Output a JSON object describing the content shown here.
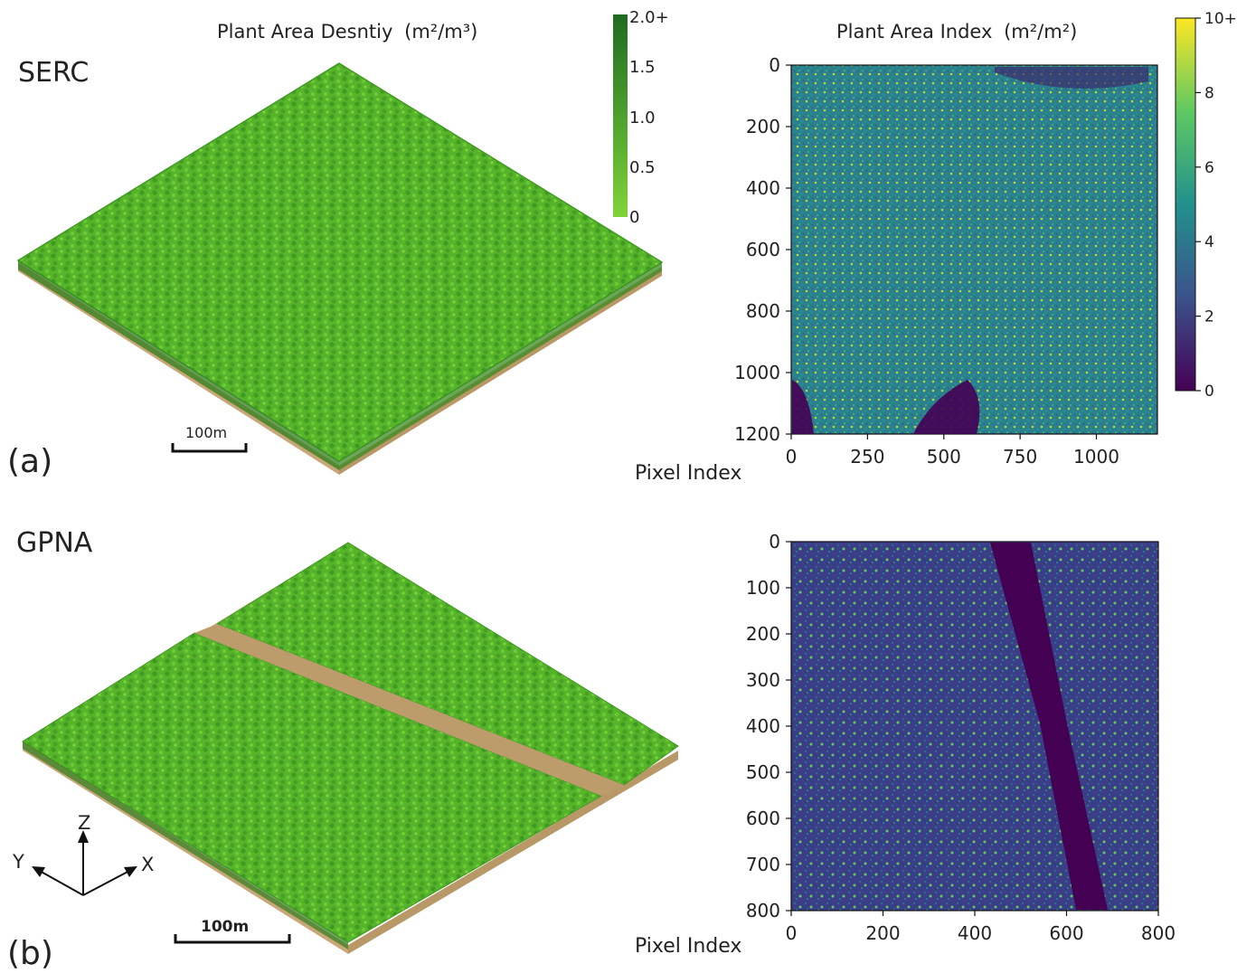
{
  "figure": {
    "panel_a": {
      "site": "SERC",
      "letter": "(a)",
      "pad_title": "Plant Area Desntiy",
      "pad_unit_html": "(m²/m³)",
      "scale_bar": "100m",
      "pad_colorbar": {
        "ticks": [
          "2.0+",
          "1.5",
          "1.0",
          "0.5",
          "0"
        ],
        "colors": [
          "#1e6b22",
          "#7fd43a"
        ]
      }
    },
    "panel_b": {
      "site": "GPNA",
      "letter": "(b)",
      "scale_bar": "100m",
      "axes": {
        "z": "Z",
        "x": "X",
        "y": "Y"
      }
    },
    "pai_title": "Plant Area Index",
    "pai_unit_html": "(m²/m²)",
    "pai_colorbar": {
      "ticks": [
        "10+",
        "8",
        "6",
        "4",
        "2",
        "0"
      ],
      "colors": [
        "#440154",
        "#3b528b",
        "#21918c",
        "#5ec962",
        "#fde725"
      ]
    },
    "xlabel": "Pixel Index"
  },
  "chart_data": [
    {
      "type": "heatmap",
      "name": "SERC PAI",
      "xlabel": "Pixel Index",
      "ylabel": "",
      "xlim": [
        0,
        1200
      ],
      "ylim": [
        1200,
        0
      ],
      "xticks": [
        0,
        250,
        500,
        750,
        1000
      ],
      "yticks": [
        0,
        200,
        400,
        600,
        800,
        1000,
        1200
      ],
      "colorbar_range": [
        0,
        10
      ],
      "colorbar_label": "Plant Area Index (m²/m²)"
    },
    {
      "type": "heatmap",
      "name": "GPNA PAI",
      "xlabel": "Pixel Index",
      "ylabel": "",
      "xlim": [
        0,
        800
      ],
      "ylim": [
        800,
        0
      ],
      "xticks": [
        0,
        200,
        400,
        600,
        800
      ],
      "yticks": [
        0,
        100,
        200,
        300,
        400,
        500,
        600,
        700,
        800
      ],
      "colorbar_range": [
        0,
        10
      ],
      "colorbar_label": "Plant Area Index (m²/m²)"
    }
  ]
}
